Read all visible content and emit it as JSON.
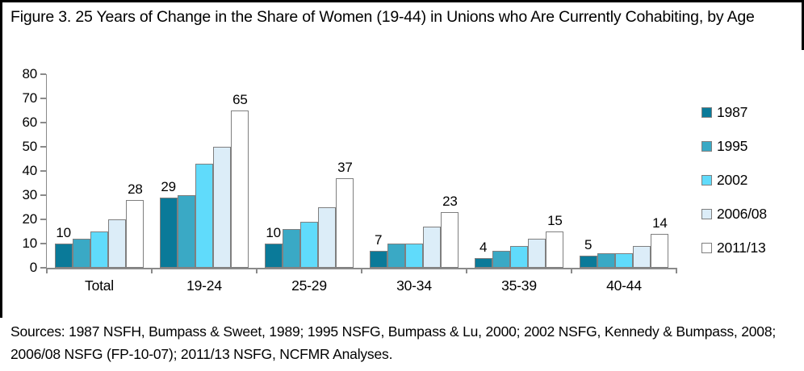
{
  "title": "Figure 3. 25 Years of Change in the Share of Women (19-44) in Unions who Are Currently Cohabiting, by Age",
  "sources": "Sources: 1987 NSFH, Bumpass & Sweet, 1989; 1995 NSFG, Bumpass & Lu, 2000; 2002 NSFG, Kennedy & Bumpass, 2008; 2006/08 NSFG (FP-10-07); 2011/13 NSFG, NCFMR Analyses.",
  "chart_data": {
    "type": "bar",
    "categories": [
      "Total",
      "19-24",
      "25-29",
      "30-34",
      "35-39",
      "40-44"
    ],
    "series": [
      {
        "name": "1987",
        "color": "#0a7a99",
        "values": [
          10,
          29,
          10,
          7,
          4,
          5
        ]
      },
      {
        "name": "1995",
        "color": "#3aa9c5",
        "values": [
          12,
          30,
          16,
          10,
          7,
          6
        ]
      },
      {
        "name": "2002",
        "color": "#60dbfb",
        "values": [
          15,
          43,
          19,
          10,
          9,
          6
        ]
      },
      {
        "name": "2006/08",
        "color": "#dcedf8",
        "values": [
          20,
          50,
          25,
          17,
          12,
          9
        ]
      },
      {
        "name": "2011/13",
        "color": "#ffffff",
        "values": [
          28,
          65,
          37,
          23,
          15,
          14
        ]
      }
    ],
    "data_labels": {
      "series_indexes": [
        0,
        4
      ]
    },
    "ylim": [
      0,
      80
    ],
    "ytick_step": 10,
    "yticks": [
      0,
      10,
      20,
      30,
      40,
      50,
      60,
      70,
      80
    ],
    "grid": false,
    "legend_position": "right",
    "bar_border_color": "#7f7f7f",
    "axis_color": "#8a8a8a"
  }
}
